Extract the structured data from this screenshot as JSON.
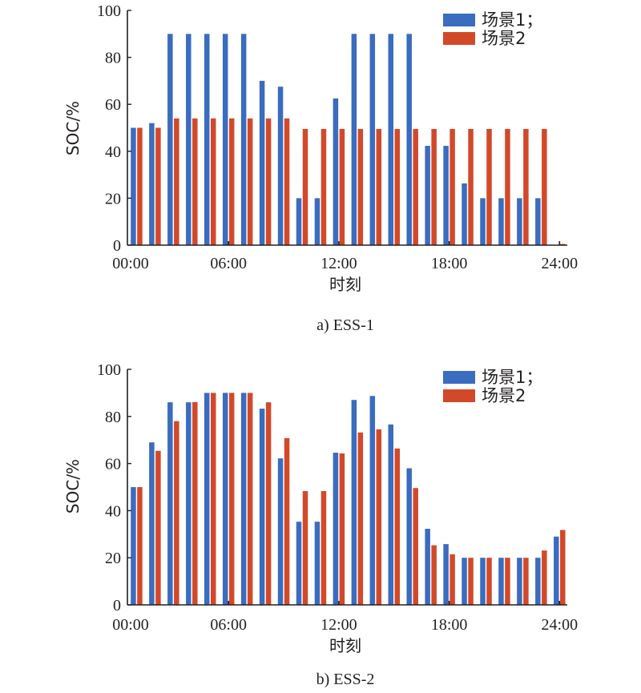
{
  "colors": {
    "scenario1": "#3a6cbf",
    "scenario2": "#d2492a",
    "axis": "#231f20"
  },
  "chart_data": [
    {
      "type": "bar",
      "title": "",
      "caption": "a) ESS-1",
      "xlabel": "时刻",
      "ylabel": "SOC/%",
      "ylim": [
        0,
        100
      ],
      "yticks": [
        "0",
        "20",
        "40",
        "60",
        "80",
        "100"
      ],
      "xticks": [
        "00:00",
        "06:00",
        "12:00",
        "18:00",
        "24:00"
      ],
      "legend_position": "top-right",
      "categories": [
        1,
        2,
        3,
        4,
        5,
        6,
        7,
        8,
        9,
        10,
        11,
        12,
        13,
        14,
        15,
        16,
        17,
        18,
        19,
        20,
        21,
        22,
        23,
        24
      ],
      "series": [
        {
          "name": "场景1；",
          "values": [
            50,
            52,
            90,
            90,
            90,
            90,
            90,
            70,
            67.5,
            20,
            20,
            62.5,
            90,
            90,
            90,
            90,
            42.3,
            42.3,
            26.3,
            20,
            20,
            20,
            20,
            0
          ]
        },
        {
          "name": "场景2",
          "values": [
            50,
            50,
            54,
            54,
            54,
            54,
            54,
            54,
            54,
            49.5,
            49.5,
            49.5,
            49.5,
            49.5,
            49.5,
            49.5,
            49.5,
            49.5,
            49.5,
            49.5,
            49.5,
            49.5,
            49.5,
            0.5
          ]
        }
      ]
    },
    {
      "type": "bar",
      "title": "",
      "caption": "b) ESS-2",
      "xlabel": "时刻",
      "ylabel": "SOC/%",
      "ylim": [
        0,
        100
      ],
      "yticks": [
        "0",
        "20",
        "40",
        "60",
        "80",
        "100"
      ],
      "xticks": [
        "00:00",
        "06:00",
        "12:00",
        "18:00",
        "24:00"
      ],
      "legend_position": "top-right",
      "categories": [
        1,
        2,
        3,
        4,
        5,
        6,
        7,
        8,
        9,
        10,
        11,
        12,
        13,
        14,
        15,
        16,
        17,
        18,
        19,
        20,
        21,
        22,
        23,
        24
      ],
      "series": [
        {
          "name": "场景1；",
          "values": [
            50,
            69,
            86,
            86,
            90,
            90,
            90,
            83.3,
            62.2,
            35.3,
            35.3,
            64.6,
            87,
            88.7,
            76.6,
            58,
            32.3,
            25.8,
            20,
            20,
            20,
            20,
            20,
            29
          ]
        },
        {
          "name": "场景2",
          "values": [
            50,
            65.4,
            78,
            86.1,
            90,
            90,
            90,
            86,
            70.8,
            48.3,
            48.3,
            64.3,
            73.2,
            74.5,
            66.4,
            49.6,
            25.3,
            21.5,
            20,
            20,
            20,
            20,
            23.1,
            31.8
          ]
        }
      ]
    }
  ]
}
